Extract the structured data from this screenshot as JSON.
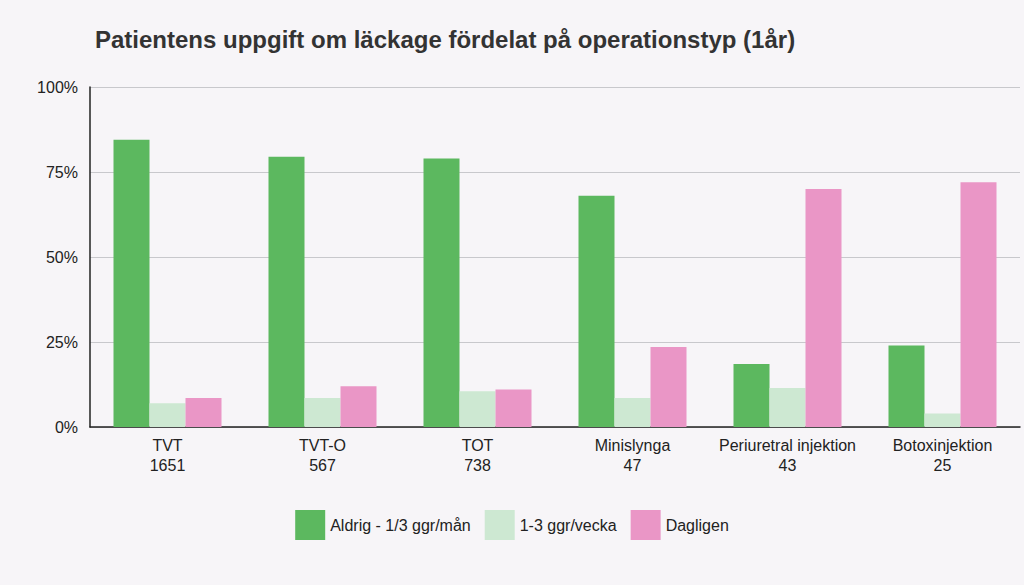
{
  "chart_data": {
    "type": "bar",
    "title": "Patientens uppgift om läckage fördelat på operationstyp (1år)",
    "categories": [
      "TVT\n1651",
      "TVT-O\n567",
      "TOT\n738",
      "Minislynga\n47",
      "Periuretral injektion\n43",
      "Botoxinjektion\n25"
    ],
    "series": [
      {
        "name": "Aldrig - 1/3 ggr/mån",
        "color": "#5cb85f",
        "values": [
          84.5,
          79.5,
          79,
          68,
          18.5,
          24
        ]
      },
      {
        "name": "1-3 ggr/vecka",
        "color": "#cde8d2",
        "values": [
          7,
          8.5,
          10.5,
          8.5,
          11.5,
          4
        ]
      },
      {
        "name": "Dagligen",
        "color": "#ea96c6",
        "values": [
          8.5,
          12,
          11,
          23.5,
          70,
          72
        ]
      }
    ],
    "ylim": [
      0,
      100
    ],
    "yticks": [
      {
        "value": 0,
        "label": "0%"
      },
      {
        "value": 25,
        "label": "25%"
      },
      {
        "value": 50,
        "label": "50%"
      },
      {
        "value": 75,
        "label": "75%"
      },
      {
        "value": 100,
        "label": "100%"
      }
    ],
    "grid": true,
    "legend": "bottom"
  }
}
